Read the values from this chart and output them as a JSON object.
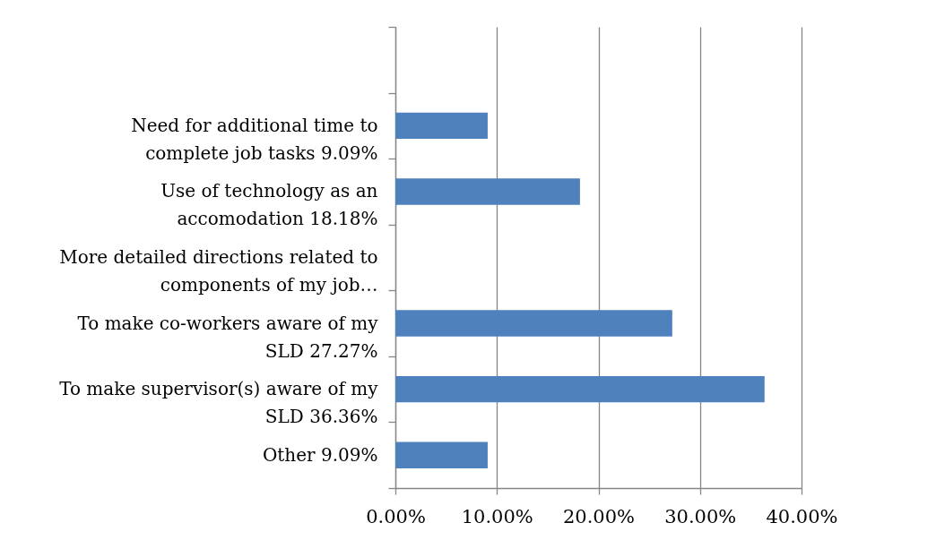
{
  "chart_data": {
    "type": "bar",
    "orientation": "horizontal",
    "categories": [
      null,
      "Need for additional time to complete job tasks 9.09%",
      "Use of technology as an accomodation 18.18%",
      "More detailed directions related to components of my job…",
      "To make co-workers aware of my SLD 27.27%",
      "To make supervisor(s) aware of my SLD 36.36%",
      "Other 9.09%"
    ],
    "values": [
      null,
      9.09,
      18.18,
      0,
      27.27,
      36.36,
      9.09
    ],
    "color": "#4f81bd",
    "xlim": [
      0,
      40
    ],
    "xticks": [
      {
        "value": 0,
        "label": "0.00%"
      },
      {
        "value": 10,
        "label": "10.00%"
      },
      {
        "value": 20,
        "label": "20.00%"
      },
      {
        "value": 30,
        "label": "30.00%"
      },
      {
        "value": 40,
        "label": "40.00%"
      }
    ],
    "grid": "x"
  }
}
